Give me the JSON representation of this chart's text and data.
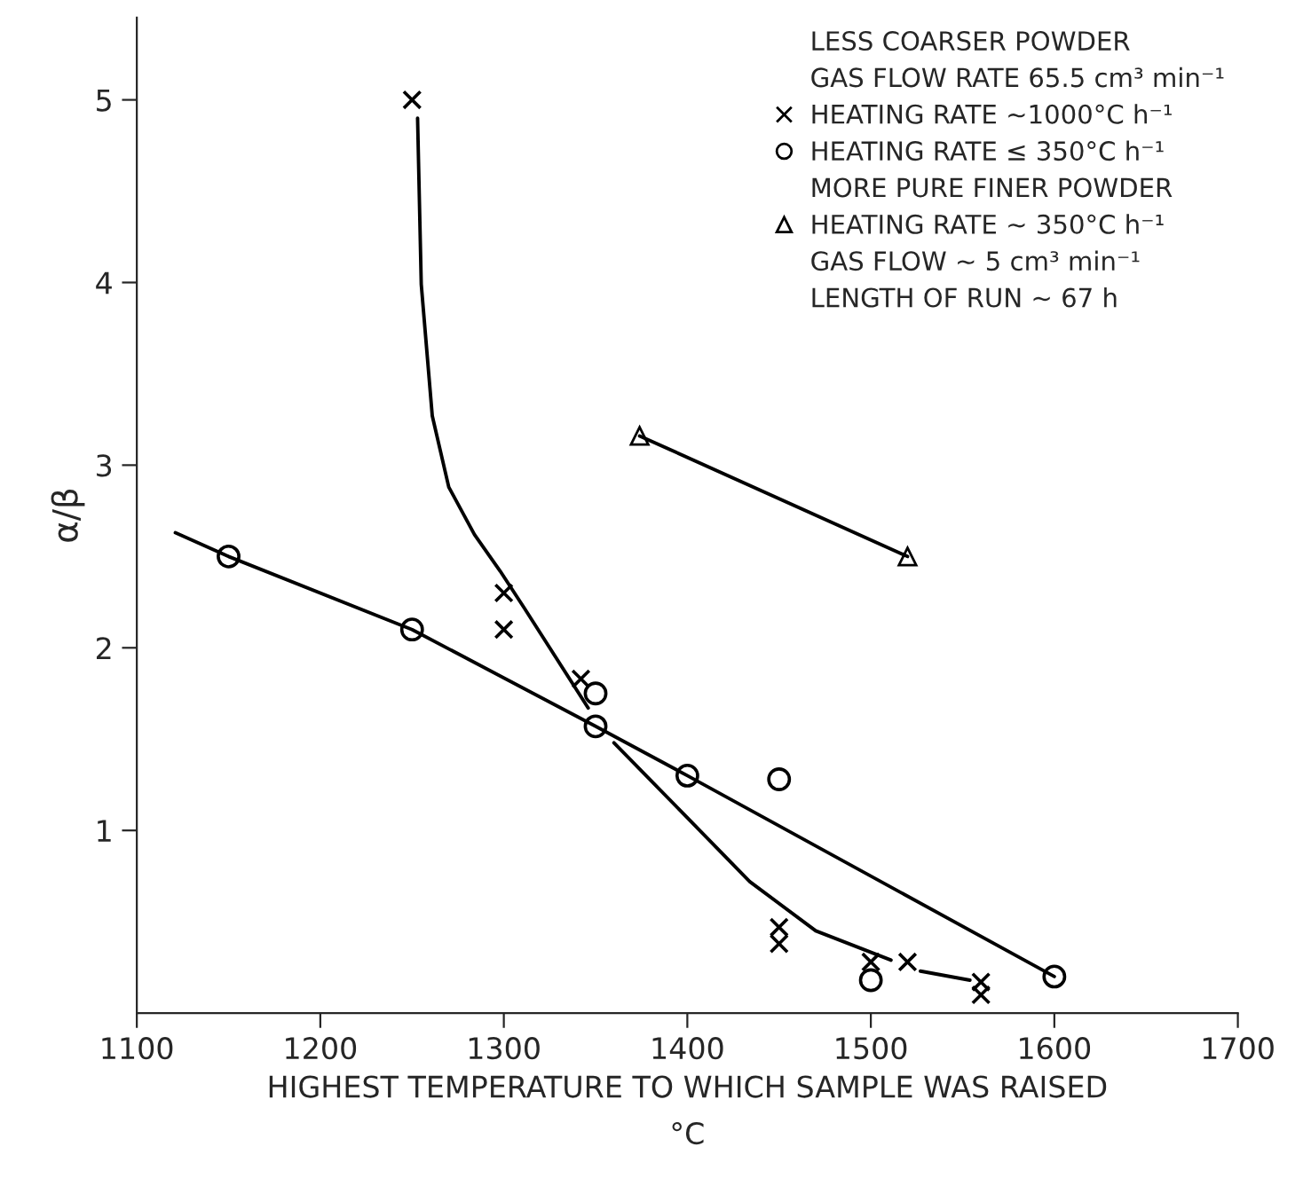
{
  "chart_data": {
    "type": "scatter",
    "xlabel": "HIGHEST TEMPERATURE TO WHICH SAMPLE WAS RAISED\n°C",
    "ylabel": "α/β",
    "xlim": [
      1100,
      1700
    ],
    "xticks": [
      1100,
      1200,
      1300,
      1400,
      1500,
      1600,
      1700
    ],
    "ylim": [
      0,
      5.45
    ],
    "yticks": [
      1,
      2,
      3,
      4,
      5
    ],
    "grid": false,
    "legend": "top right",
    "annotations": [
      "LESS COARSER POWDER",
      "GAS FLOW RATE 65.5 cm³ min⁻¹",
      "MORE PURE FINER POWDER",
      "GAS FLOW ~ 5 cm³ min⁻¹",
      "LENGTH OF RUN ~ 67 h"
    ],
    "series": [
      {
        "name": "HEATING RATE ~1000°C h⁻¹",
        "marker": "cross",
        "color": "#000000",
        "x": [
          1250,
          1300,
          1300,
          1342,
          1450,
          1450,
          1500,
          1520,
          1560,
          1560
        ],
        "values": [
          5.0,
          2.3,
          2.1,
          1.83,
          0.47,
          0.38,
          0.28,
          0.28,
          0.17,
          0.1
        ]
      },
      {
        "name": "HEATING RATE ≤ 350°C h⁻¹",
        "marker": "circle",
        "color": "#000000",
        "x": [
          1150,
          1250,
          1350,
          1350,
          1400,
          1450,
          1500,
          1600
        ],
        "values": [
          2.5,
          2.1,
          1.75,
          1.57,
          1.3,
          1.28,
          0.18,
          0.2
        ]
      },
      {
        "name": "HEATING RATE ~ 350°C h⁻¹",
        "type": "line",
        "marker": "triangle",
        "color": "#000000",
        "x": [
          1374,
          1520
        ],
        "values": [
          3.16,
          2.5
        ]
      },
      {
        "type": "line",
        "marker": "none",
        "color": "#000000",
        "x": [
          1121,
          1150,
          1250,
          1350,
          1400,
          1600
        ],
        "values": [
          2.63,
          2.5,
          2.1,
          1.57,
          1.3,
          0.2
        ]
      },
      {
        "type": "line",
        "marker": "none",
        "color": "#000000",
        "x": [
          1253,
          1255,
          1261,
          1270,
          1284,
          1298,
          1311,
          1346,
          1353,
          1360,
          1398,
          1434,
          1470,
          1511,
          1519,
          1527,
          1554
        ],
        "values": [
          4.9,
          3.99,
          3.27,
          2.88,
          2.62,
          2.42,
          2.22,
          1.67,
          null,
          1.48,
          1.09,
          0.72,
          0.45,
          0.29,
          null,
          0.23,
          0.18
        ]
      }
    ]
  }
}
